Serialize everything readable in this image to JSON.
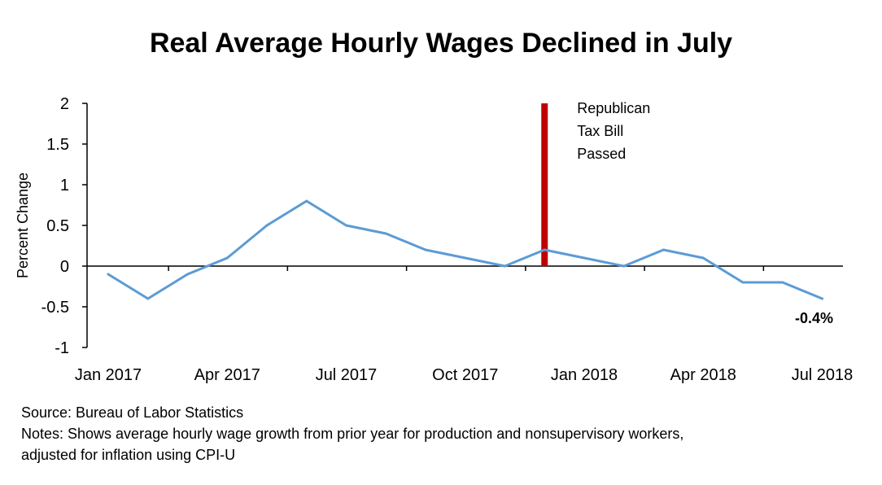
{
  "chart_data": {
    "type": "line",
    "title": "Real Average Hourly Wages Declined in July",
    "ylabel": "Percent Change",
    "xlabel": "",
    "ylim": [
      -1,
      2
    ],
    "yticks": [
      -1,
      -0.5,
      0,
      0.5,
      1,
      1.5,
      2
    ],
    "ytick_labels": [
      "-1",
      "-0.5",
      "0",
      "0.5",
      "1",
      "1.5",
      "2"
    ],
    "x": [
      "Jan 2017",
      "Feb 2017",
      "Mar 2017",
      "Apr 2017",
      "May 2017",
      "Jun 2017",
      "Jul 2017",
      "Aug 2017",
      "Sep 2017",
      "Oct 2017",
      "Nov 2017",
      "Dec 2017",
      "Jan 2018",
      "Feb 2018",
      "Mar 2018",
      "Apr 2018",
      "May 2018",
      "Jun 2018",
      "Jul 2018"
    ],
    "xtick_labels": [
      "Jan 2017",
      "Apr 2017",
      "Jul 2017",
      "Oct 2017",
      "Jan 2018",
      "Apr 2018",
      "Jul 2018"
    ],
    "xtick_indices": [
      0,
      3,
      6,
      9,
      12,
      15,
      18
    ],
    "series": [
      {
        "color": "#5B9BD5",
        "values": [
          -0.1,
          -0.4,
          -0.1,
          0.1,
          0.5,
          0.8,
          0.5,
          0.4,
          0.2,
          0.1,
          0.0,
          0.2,
          0.1,
          0.0,
          0.2,
          0.1,
          -0.2,
          -0.2,
          -0.4
        ]
      }
    ],
    "marker": {
      "x": "Dec 2017",
      "color": "#C00000",
      "label_lines": [
        "Republican",
        "Tax Bill",
        "Passed"
      ]
    },
    "end_label": "-0.4%",
    "grid": false,
    "legend": "none"
  },
  "footer": {
    "source": "Source: Bureau of Labor Statistics",
    "notes_line1": "Notes: Shows average hourly wage growth from prior year for production and nonsupervisory workers,",
    "notes_line2": "adjusted for inflation using CPI-U"
  }
}
